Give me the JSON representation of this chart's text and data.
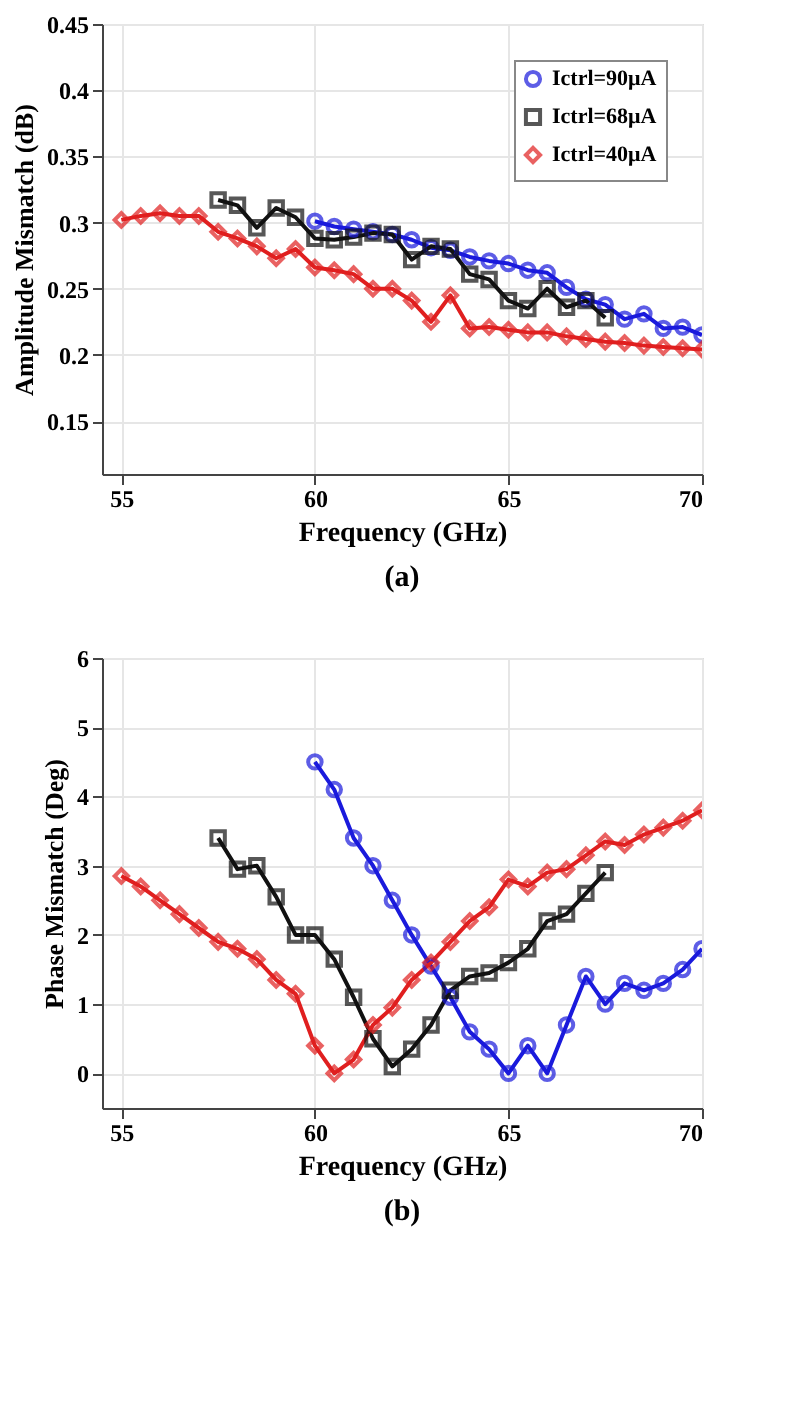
{
  "chart_data": [
    {
      "type": "line",
      "title": "(a)",
      "xlabel": "Frequency (GHz)",
      "ylabel": "Amplitude Mismatch (dB)",
      "xlim": [
        54.5,
        70
      ],
      "xticks": [
        55,
        60,
        65,
        70
      ],
      "ylim": [
        0.11,
        0.45
      ],
      "yticks": [
        0.15,
        0.2,
        0.25,
        0.3,
        0.35,
        0.4,
        0.45
      ],
      "grid": true,
      "legend": "top right",
      "line_style": "solid",
      "series": [
        {
          "name": "Ictrl=90μA",
          "color": "#1a1adc",
          "marker": "circle",
          "x": [
            60,
            60.5,
            61,
            61.5,
            62,
            62.5,
            63,
            63.5,
            64,
            64.5,
            65,
            65.5,
            66,
            66.5,
            67,
            67.5,
            68,
            68.5,
            69,
            69.5,
            70
          ],
          "values": [
            0.301,
            0.297,
            0.295,
            0.293,
            0.291,
            0.287,
            0.281,
            0.279,
            0.274,
            0.271,
            0.269,
            0.264,
            0.262,
            0.251,
            0.242,
            0.238,
            0.227,
            0.231,
            0.22,
            0.221,
            0.215
          ]
        },
        {
          "name": "Ictrl=68μA",
          "color": "#111111",
          "marker": "square",
          "x": [
            57.5,
            58,
            58.5,
            59,
            59.5,
            60,
            60.5,
            61,
            61.5,
            62,
            62.5,
            63,
            63.5,
            64,
            64.5,
            65,
            65.5,
            66,
            66.5,
            67,
            67.5
          ],
          "values": [
            0.317,
            0.313,
            0.296,
            0.311,
            0.304,
            0.288,
            0.287,
            0.289,
            0.292,
            0.291,
            0.272,
            0.282,
            0.28,
            0.261,
            0.257,
            0.241,
            0.235,
            0.25,
            0.236,
            0.241,
            0.228
          ]
        },
        {
          "name": "Ictrl=40μA",
          "color": "#e01f1f",
          "marker": "diamond",
          "x": [
            55,
            55.5,
            56,
            56.5,
            57,
            57.5,
            58,
            58.5,
            59,
            59.5,
            60,
            60.5,
            61,
            61.5,
            62,
            62.5,
            63,
            63.5,
            64,
            64.5,
            65,
            65.5,
            66,
            66.5,
            67,
            67.5,
            68,
            68.5,
            69,
            69.5,
            70
          ],
          "values": [
            0.302,
            0.305,
            0.307,
            0.305,
            0.305,
            0.293,
            0.288,
            0.282,
            0.273,
            0.28,
            0.266,
            0.264,
            0.261,
            0.25,
            0.25,
            0.241,
            0.225,
            0.245,
            0.22,
            0.221,
            0.219,
            0.217,
            0.217,
            0.214,
            0.212,
            0.21,
            0.209,
            0.207,
            0.206,
            0.205,
            0.204
          ]
        }
      ]
    },
    {
      "type": "line",
      "title": "(b)",
      "xlabel": "Frequency (GHz)",
      "ylabel": "Phase Mismatch (Deg)",
      "xlim": [
        54.5,
        70
      ],
      "xticks": [
        55,
        60,
        65,
        70
      ],
      "ylim": [
        -0.5,
        6
      ],
      "yticks": [
        0,
        1,
        2,
        3,
        4,
        5,
        6
      ],
      "grid": true,
      "legend": "top right",
      "line_style": "solid",
      "series": [
        {
          "name": "Ictrl=90μA",
          "color": "#1a1adc",
          "marker": "circle",
          "x": [
            60,
            60.5,
            61,
            61.5,
            62,
            62.5,
            63,
            63.5,
            64,
            64.5,
            65,
            65.5,
            66,
            66.5,
            67,
            67.5,
            68,
            68.5,
            69,
            69.5,
            70
          ],
          "values": [
            4.5,
            4.1,
            3.4,
            3.0,
            2.5,
            2.0,
            1.55,
            1.1,
            0.6,
            0.35,
            0.0,
            0.4,
            0.0,
            0.7,
            1.4,
            1.0,
            1.3,
            1.2,
            1.3,
            1.5,
            1.8
          ]
        },
        {
          "name": "Ictrl=68μA",
          "color": "#111111",
          "marker": "square",
          "x": [
            57.5,
            58,
            58.5,
            59,
            59.5,
            60,
            60.5,
            61,
            61.5,
            62,
            62.5,
            63,
            63.5,
            64,
            64.5,
            65,
            65.5,
            66,
            66.5,
            67,
            67.5
          ],
          "values": [
            3.4,
            2.95,
            3.0,
            2.55,
            2.0,
            2.0,
            1.65,
            1.1,
            0.5,
            0.1,
            0.35,
            0.7,
            1.2,
            1.4,
            1.45,
            1.6,
            1.8,
            2.2,
            2.3,
            2.6,
            2.9
          ]
        },
        {
          "name": "Ictrl=40μA",
          "color": "#e01f1f",
          "marker": "diamond",
          "x": [
            55,
            55.5,
            56,
            56.5,
            57,
            57.5,
            58,
            58.5,
            59,
            59.5,
            60,
            60.5,
            61,
            61.5,
            62,
            62.5,
            63,
            63.5,
            64,
            64.5,
            65,
            65.5,
            66,
            66.5,
            67,
            67.5,
            68,
            68.5,
            69,
            69.5,
            70
          ],
          "values": [
            2.85,
            2.7,
            2.5,
            2.3,
            2.1,
            1.9,
            1.8,
            1.65,
            1.35,
            1.15,
            0.4,
            0.0,
            0.2,
            0.7,
            0.95,
            1.35,
            1.6,
            1.9,
            2.2,
            2.4,
            2.8,
            2.7,
            2.9,
            2.95,
            3.15,
            3.35,
            3.3,
            3.45,
            3.55,
            3.65,
            3.8
          ]
        }
      ]
    }
  ]
}
